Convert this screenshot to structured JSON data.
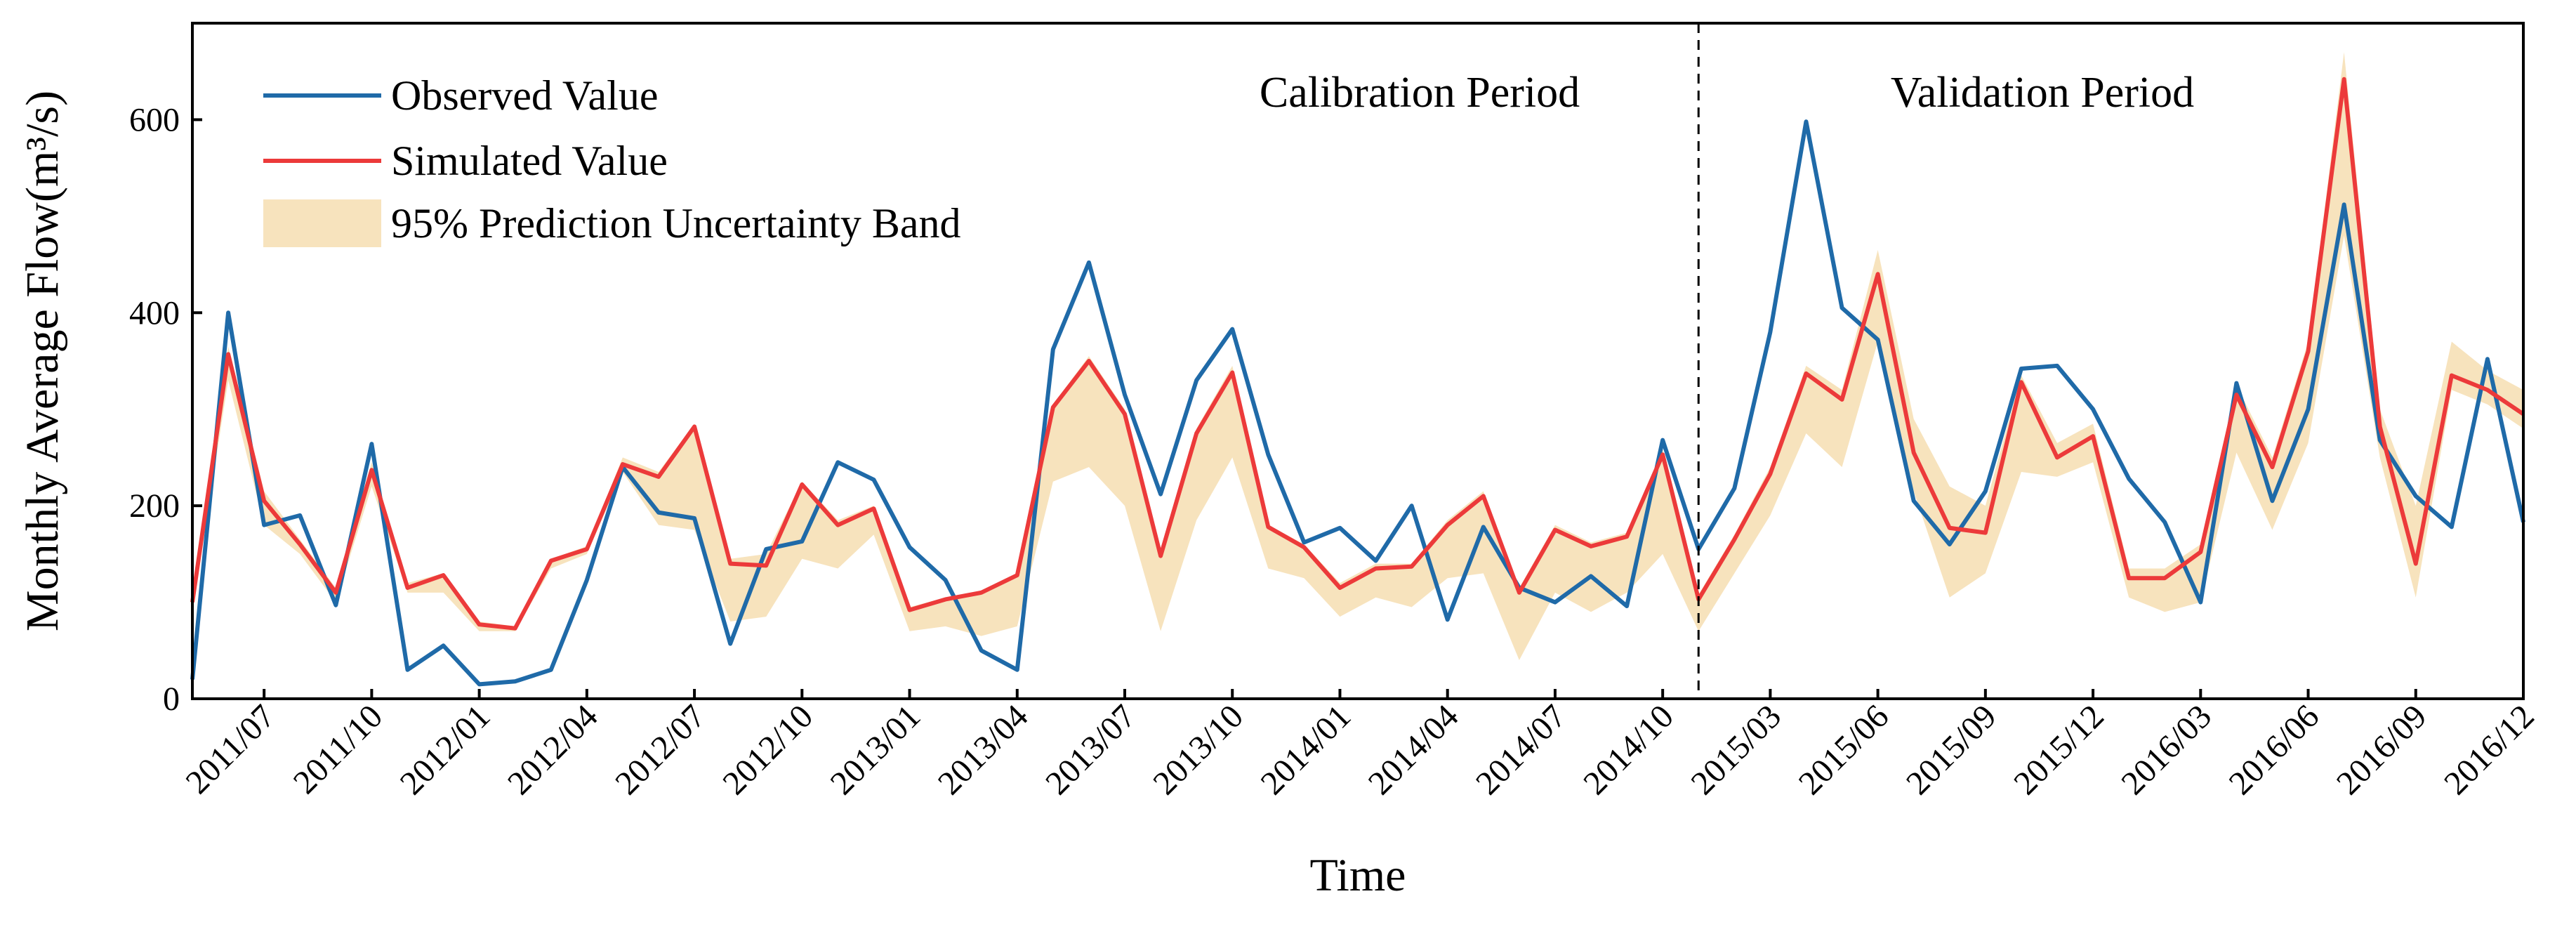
{
  "chart_data": {
    "type": "line",
    "xlabel": "Time",
    "ylabel": "Monthly Average Flow(m³/s)",
    "categories": [
      null,
      null,
      "2011/07",
      null,
      null,
      "2011/10",
      null,
      null,
      "2012/01",
      null,
      null,
      "2012/04",
      null,
      null,
      "2012/07",
      null,
      null,
      "2012/10",
      null,
      null,
      "2013/01",
      null,
      null,
      "2013/04",
      null,
      null,
      "2013/07",
      null,
      null,
      "2013/10",
      null,
      null,
      "2014/01",
      null,
      null,
      "2014/04",
      null,
      null,
      "2014/07",
      null,
      null,
      "2014/10",
      null,
      null,
      "2015/03",
      null,
      null,
      "2015/06",
      null,
      null,
      "2015/09",
      null,
      null,
      "2015/12",
      null,
      null,
      "2016/03",
      null,
      null,
      "2016/06",
      null,
      null,
      "2016/09",
      null,
      null,
      "2016/12"
    ],
    "ylim": [
      0,
      700
    ],
    "yticks": [
      0,
      200,
      400,
      600
    ],
    "period_split": 42,
    "annotations": [
      "Calibration Period",
      "Validation Period"
    ],
    "band": {
      "name": "95% Prediction Uncertainty Band",
      "color": "#f7e3bd",
      "lower": [
        90,
        330,
        180,
        150,
        100,
        220,
        110,
        110,
        70,
        70,
        135,
        150,
        235,
        180,
        175,
        80,
        85,
        145,
        135,
        170,
        70,
        75,
        65,
        75,
        225,
        240,
        200,
        70,
        185,
        250,
        135,
        125,
        85,
        105,
        95,
        125,
        130,
        40,
        110,
        90,
        110,
        150,
        70,
        130,
        190,
        275,
        240,
        370,
        215,
        105,
        130,
        235,
        230,
        245,
        105,
        90,
        100,
        255,
        175,
        265,
        480,
        250,
        105,
        320,
        305,
        280
      ],
      "upper": [
        110,
        365,
        215,
        165,
        115,
        245,
        120,
        130,
        80,
        75,
        145,
        158,
        250,
        235,
        285,
        145,
        150,
        225,
        185,
        200,
        95,
        105,
        112,
        130,
        305,
        355,
        300,
        150,
        280,
        345,
        180,
        160,
        120,
        140,
        140,
        185,
        215,
        115,
        180,
        162,
        172,
        258,
        108,
        170,
        240,
        345,
        320,
        465,
        290,
        220,
        200,
        335,
        265,
        285,
        135,
        135,
        160,
        325,
        250,
        370,
        670,
        300,
        200,
        370,
        340,
        320
      ]
    },
    "series": [
      {
        "name": "Observed Value",
        "color": "#1f6aa8",
        "values": [
          20,
          400,
          180,
          190,
          97,
          264,
          30,
          55,
          15,
          18,
          30,
          123,
          240,
          193,
          187,
          57,
          155,
          163,
          245,
          227,
          157,
          123,
          50,
          30,
          362,
          452,
          315,
          212,
          330,
          383,
          253,
          162,
          177,
          143,
          200,
          82,
          178,
          115,
          100,
          127,
          96,
          268,
          155,
          218,
          380,
          598,
          405,
          372,
          205,
          160,
          215,
          342,
          345,
          300,
          228,
          183,
          100,
          327,
          205,
          300,
          512,
          268,
          210,
          178,
          352,
          183
        ]
      },
      {
        "name": "Simulated Value",
        "color": "#ec3a3a",
        "values": [
          100,
          357,
          205,
          160,
          110,
          237,
          115,
          128,
          77,
          73,
          143,
          155,
          243,
          230,
          282,
          140,
          138,
          222,
          180,
          197,
          92,
          103,
          110,
          128,
          302,
          350,
          295,
          148,
          275,
          338,
          178,
          157,
          115,
          135,
          137,
          180,
          210,
          110,
          175,
          158,
          168,
          253,
          103,
          165,
          233,
          337,
          310,
          440,
          255,
          177,
          172,
          328,
          250,
          272,
          125,
          125,
          152,
          315,
          240,
          360,
          642,
          282,
          140,
          335,
          320,
          295
        ]
      }
    ]
  }
}
